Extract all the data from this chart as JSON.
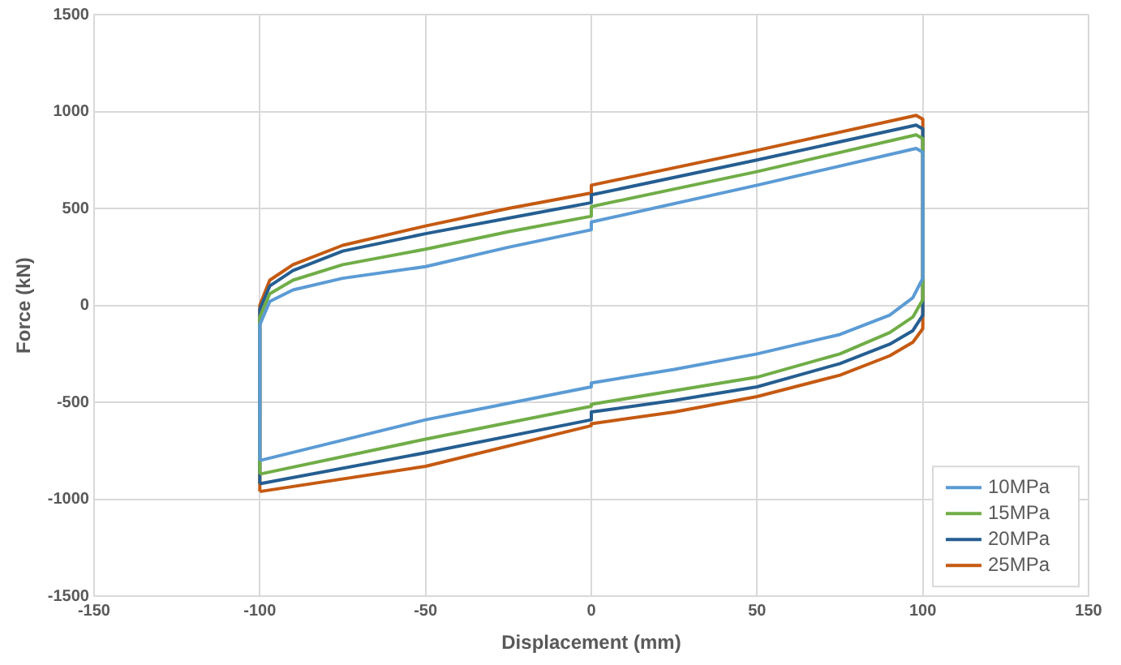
{
  "chart_data": {
    "type": "line",
    "xlabel": "Displacement (mm)",
    "ylabel": "Force (kN)",
    "xlim": [
      -150,
      150
    ],
    "xticks": [
      -150,
      -100,
      -50,
      0,
      50,
      100,
      150
    ],
    "ylim": [
      -1500,
      1500
    ],
    "yticks": [
      -1500,
      -1000,
      -500,
      0,
      500,
      1000,
      1500
    ],
    "grid": true,
    "legend": "bottom right",
    "marker": "none",
    "line_style": "solid",
    "series": [
      {
        "name": "10MPa",
        "color": "#5b9bd5",
        "x": [
          -100,
          -100,
          -97,
          -90,
          -75,
          -50,
          -25,
          0,
          0,
          50,
          98,
          100,
          100
        ],
        "values": [
          -800,
          -100,
          20,
          80,
          140,
          200,
          300,
          390,
          430,
          620,
          810,
          790,
          140
        ]
      },
      {
        "color": "#5b9bd5",
        "x": [
          -100,
          -50,
          0,
          0,
          25,
          50,
          75,
          90,
          97,
          100
        ],
        "values": [
          -800,
          -590,
          -420,
          -400,
          -330,
          -250,
          -150,
          -50,
          40,
          140
        ]
      },
      {
        "name": "15MPa",
        "color": "#70ad47",
        "x": [
          -100,
          -100,
          -97,
          -90,
          -75,
          -50,
          -25,
          0,
          0,
          50,
          98,
          100,
          100
        ],
        "values": [
          -870,
          -60,
          60,
          130,
          210,
          290,
          380,
          460,
          510,
          690,
          880,
          860,
          30
        ]
      },
      {
        "color": "#70ad47",
        "x": [
          -100,
          -50,
          0,
          0,
          25,
          50,
          75,
          90,
          97,
          100
        ],
        "values": [
          -870,
          -690,
          -520,
          -510,
          -440,
          -370,
          -250,
          -140,
          -60,
          30
        ]
      },
      {
        "name": "20MPa",
        "color": "#255e91",
        "x": [
          -100,
          -100,
          -97,
          -90,
          -75,
          -50,
          -25,
          0,
          0,
          50,
          98,
          100,
          100
        ],
        "values": [
          -920,
          -20,
          100,
          180,
          280,
          370,
          450,
          530,
          570,
          750,
          930,
          910,
          -50
        ]
      },
      {
        "color": "#255e91",
        "x": [
          -100,
          -50,
          0,
          0,
          25,
          50,
          75,
          90,
          97,
          100
        ],
        "values": [
          -920,
          -760,
          -590,
          -550,
          -490,
          -420,
          -300,
          -200,
          -130,
          -50
        ]
      },
      {
        "name": "25MPa",
        "color": "#c55a11",
        "x": [
          -100,
          -100,
          -97,
          -90,
          -75,
          -50,
          -25,
          0,
          0,
          50,
          98,
          100,
          100
        ],
        "values": [
          -960,
          0,
          130,
          210,
          310,
          410,
          500,
          580,
          620,
          800,
          980,
          960,
          -120
        ]
      },
      {
        "color": "#c55a11",
        "x": [
          -100,
          -50,
          0,
          0,
          25,
          50,
          75,
          90,
          97,
          100
        ],
        "values": [
          -960,
          -830,
          -620,
          -610,
          -550,
          -470,
          -360,
          -260,
          -190,
          -120
        ]
      }
    ]
  }
}
